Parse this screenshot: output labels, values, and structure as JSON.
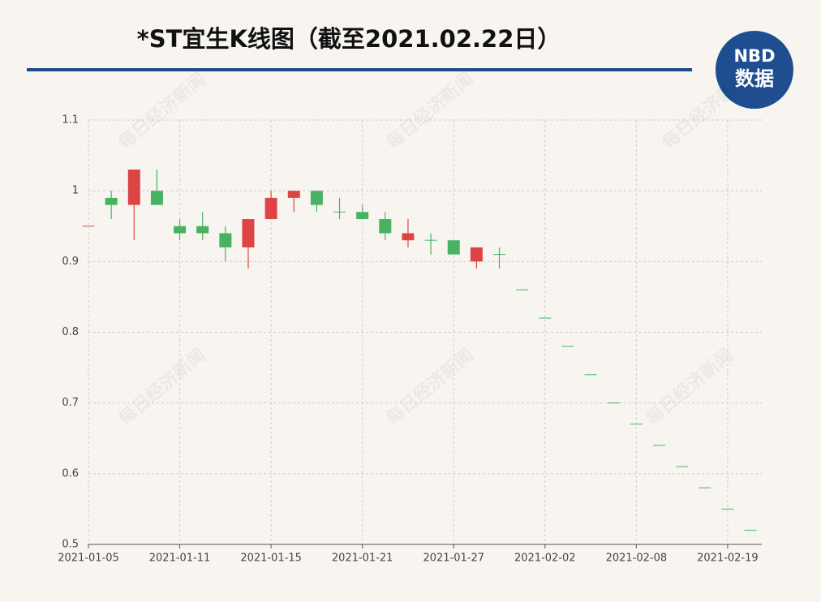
{
  "chart_data": {
    "type": "candlestick",
    "title": "*ST宜生K线图（截至2021.02.22日）",
    "logo": {
      "top": "NBD",
      "bottom": "数据"
    },
    "watermark": "每日经济新闻",
    "categories": [
      "2021-01-05",
      null,
      null,
      null,
      "2021-01-11",
      null,
      null,
      null,
      "2021-01-15",
      null,
      null,
      null,
      "2021-01-21",
      null,
      null,
      null,
      "2021-01-27",
      null,
      null,
      null,
      "2021-02-02",
      null,
      null,
      null,
      "2021-02-08",
      null,
      null,
      null,
      "2021-02-19",
      null
    ],
    "open": [
      0.95,
      0.99,
      0.98,
      1.0,
      0.95,
      0.95,
      0.94,
      0.92,
      0.96,
      0.99,
      1.0,
      0.97,
      0.97,
      0.96,
      0.93,
      0.93,
      0.93,
      0.9,
      0.91,
      0.86,
      0.82,
      0.78,
      0.74,
      0.7,
      0.67,
      0.64,
      0.61,
      0.58,
      0.55,
      0.52
    ],
    "high": [
      0.95,
      1.0,
      1.03,
      1.03,
      0.96,
      0.97,
      0.95,
      0.96,
      1.0,
      1.0,
      1.0,
      0.99,
      0.98,
      0.97,
      0.96,
      0.94,
      0.93,
      0.92,
      0.92,
      0.86,
      0.82,
      0.78,
      0.74,
      0.7,
      0.67,
      0.64,
      0.61,
      0.58,
      0.55,
      0.52
    ],
    "low": [
      0.95,
      0.96,
      0.93,
      0.98,
      0.93,
      0.93,
      0.9,
      0.89,
      0.96,
      0.97,
      0.97,
      0.96,
      0.96,
      0.93,
      0.92,
      0.91,
      0.91,
      0.89,
      0.89,
      0.86,
      0.82,
      0.78,
      0.74,
      0.7,
      0.67,
      0.64,
      0.61,
      0.58,
      0.55,
      0.52
    ],
    "close": [
      0.95,
      0.98,
      1.03,
      0.98,
      0.94,
      0.94,
      0.92,
      0.96,
      0.99,
      1.0,
      0.98,
      0.97,
      0.96,
      0.94,
      0.94,
      0.93,
      0.91,
      0.92,
      0.91,
      0.86,
      0.82,
      0.78,
      0.74,
      0.7,
      0.67,
      0.64,
      0.61,
      0.58,
      0.55,
      0.52
    ],
    "up_color": "#dd4444",
    "down_color": "#47b262",
    "ylim": [
      0.5,
      1.1
    ],
    "yticks": [
      0.5,
      0.6,
      0.7,
      0.8,
      0.9,
      1,
      1.1
    ],
    "grid": true
  }
}
